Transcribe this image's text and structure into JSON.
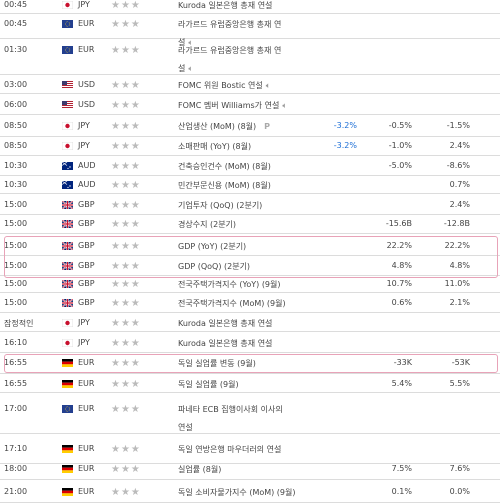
{
  "rows": [
    {
      "time": "00:45",
      "flag": "jp",
      "currency": "JPY",
      "stars": "★★★",
      "event": "Kuroda 일본은행 총재 연설",
      "actual": "",
      "forecast": "",
      "previous": "",
      "line2": ""
    },
    {
      "time": "00:45",
      "flag": "eu",
      "currency": "EUR",
      "stars": "★★★",
      "event": "라가르드 유럽중앙은행 총재 연",
      "actual": "",
      "forecast": "",
      "previous": "",
      "line2": "설",
      "speaker": true
    },
    {
      "time": "01:30",
      "flag": "eu",
      "currency": "EUR",
      "stars": "★★★",
      "event": "라가르드 유럽중앙은행 총재 연",
      "actual": "",
      "forecast": "",
      "previous": "",
      "line2": "설",
      "speaker": true
    },
    {
      "time": "03:00",
      "flag": "us",
      "currency": "USD",
      "stars": "★★★",
      "event": "FOMC 위원 Bostic 연설",
      "actual": "",
      "forecast": "",
      "previous": "",
      "speaker": true
    },
    {
      "time": "06:00",
      "flag": "us",
      "currency": "USD",
      "stars": "★★★",
      "event": "FOMC 멤버 Williams가 연설",
      "actual": "",
      "forecast": "",
      "previous": "",
      "speaker": true
    },
    {
      "time": "08:50",
      "flag": "jp",
      "currency": "JPY",
      "stars": "★★★",
      "event": "산업생산 (MoM) (8월)",
      "actual": "-3.2%",
      "forecast": "-0.5%",
      "previous": "-1.5%",
      "pbadge": "P"
    },
    {
      "time": "08:50",
      "flag": "jp",
      "currency": "JPY",
      "stars": "★★★",
      "event": "소매판매 (YoY) (8월)",
      "actual": "-3.2%",
      "forecast": "-1.0%",
      "previous": "2.4%"
    },
    {
      "time": "10:30",
      "flag": "au",
      "currency": "AUD",
      "stars": "★★★",
      "event": "건축승인건수 (MoM) (8월)",
      "actual": "",
      "forecast": "-5.0%",
      "previous": "-8.6%"
    },
    {
      "time": "10:30",
      "flag": "au",
      "currency": "AUD",
      "stars": "★★★",
      "event": "민간부문신용 (MoM) (8월)",
      "actual": "",
      "forecast": "",
      "previous": "0.7%"
    },
    {
      "time": "15:00",
      "flag": "gb",
      "currency": "GBP",
      "stars": "★★★",
      "event": "기업투자 (QoQ) (2분기)",
      "actual": "",
      "forecast": "",
      "previous": "2.4%"
    },
    {
      "time": "15:00",
      "flag": "gb",
      "currency": "GBP",
      "stars": "★★★",
      "event": "경상수지 (2분기)",
      "actual": "",
      "forecast": "-15.6B",
      "previous": "-12.8B"
    },
    {
      "time": "15:00",
      "flag": "gb",
      "currency": "GBP",
      "stars": "★★★",
      "event": "GDP (YoY) (2분기)",
      "actual": "",
      "forecast": "22.2%",
      "previous": "22.2%"
    },
    {
      "time": "15:00",
      "flag": "gb",
      "currency": "GBP",
      "stars": "★★★",
      "event": "GDP (QoQ) (2분기)",
      "actual": "",
      "forecast": "4.8%",
      "previous": "4.8%"
    },
    {
      "time": "15:00",
      "flag": "gb",
      "currency": "GBP",
      "stars": "★★★",
      "event": "전국주택가격지수 (YoY) (9월)",
      "actual": "",
      "forecast": "10.7%",
      "previous": "11.0%"
    },
    {
      "time": "15:00",
      "flag": "gb",
      "currency": "GBP",
      "stars": "★★★",
      "event": "전국주택가격지수 (MoM) (9월)",
      "actual": "",
      "forecast": "0.6%",
      "previous": "2.1%"
    },
    {
      "time": "잠정적인",
      "flag": "jp",
      "currency": "JPY",
      "stars": "★★★",
      "event": "Kuroda 일본은행 총재 연설",
      "actual": "",
      "forecast": "",
      "previous": ""
    },
    {
      "time": "16:10",
      "flag": "jp",
      "currency": "JPY",
      "stars": "★★★",
      "event": "Kuroda 일본은행 총재 연설",
      "actual": "",
      "forecast": "",
      "previous": ""
    },
    {
      "time": "16:55",
      "flag": "de",
      "currency": "EUR",
      "stars": "★★★",
      "event": "독일 실업률 변동 (9월)",
      "actual": "",
      "forecast": "-33K",
      "previous": "-53K"
    },
    {
      "time": "16:55",
      "flag": "de",
      "currency": "EUR",
      "stars": "★★★",
      "event": "독일 실업률 (9월)",
      "actual": "",
      "forecast": "5.4%",
      "previous": "5.5%"
    },
    {
      "time": "17:00",
      "flag": "eu",
      "currency": "EUR",
      "stars": "★★★",
      "event": "파네타 ECB 집행이사회 이사의",
      "actual": "",
      "forecast": "",
      "previous": "",
      "line2": "연설"
    },
    {
      "time": "17:10",
      "flag": "de",
      "currency": "EUR",
      "stars": "★★★",
      "event": "독일 연방은행 마우더러의 연설",
      "actual": "",
      "forecast": "",
      "previous": ""
    },
    {
      "time": "18:00",
      "flag": "de",
      "currency": "EUR",
      "stars": "★★★",
      "event": "실업률 (8월)",
      "actual": "",
      "forecast": "7.5%",
      "previous": "7.6%"
    },
    {
      "time": "21:00",
      "flag": "de",
      "currency": "EUR",
      "stars": "★★★",
      "event": "독일 소비자물가지수 (MoM) (9월)",
      "actual": "",
      "forecast": "0.1%",
      "previous": "0.0%"
    }
  ],
  "colors": {
    "highlight_border": "#e8a3b8",
    "actual_text": "#1e6fd6",
    "row_divider": "#dcdcdc"
  },
  "icons": {
    "flags": [
      "japan-flag-icon",
      "eu-flag-icon",
      "us-flag-icon",
      "australia-flag-icon",
      "uk-flag-icon",
      "germany-flag-icon"
    ],
    "speaker": "speaker-icon",
    "stars": "star-icon"
  }
}
